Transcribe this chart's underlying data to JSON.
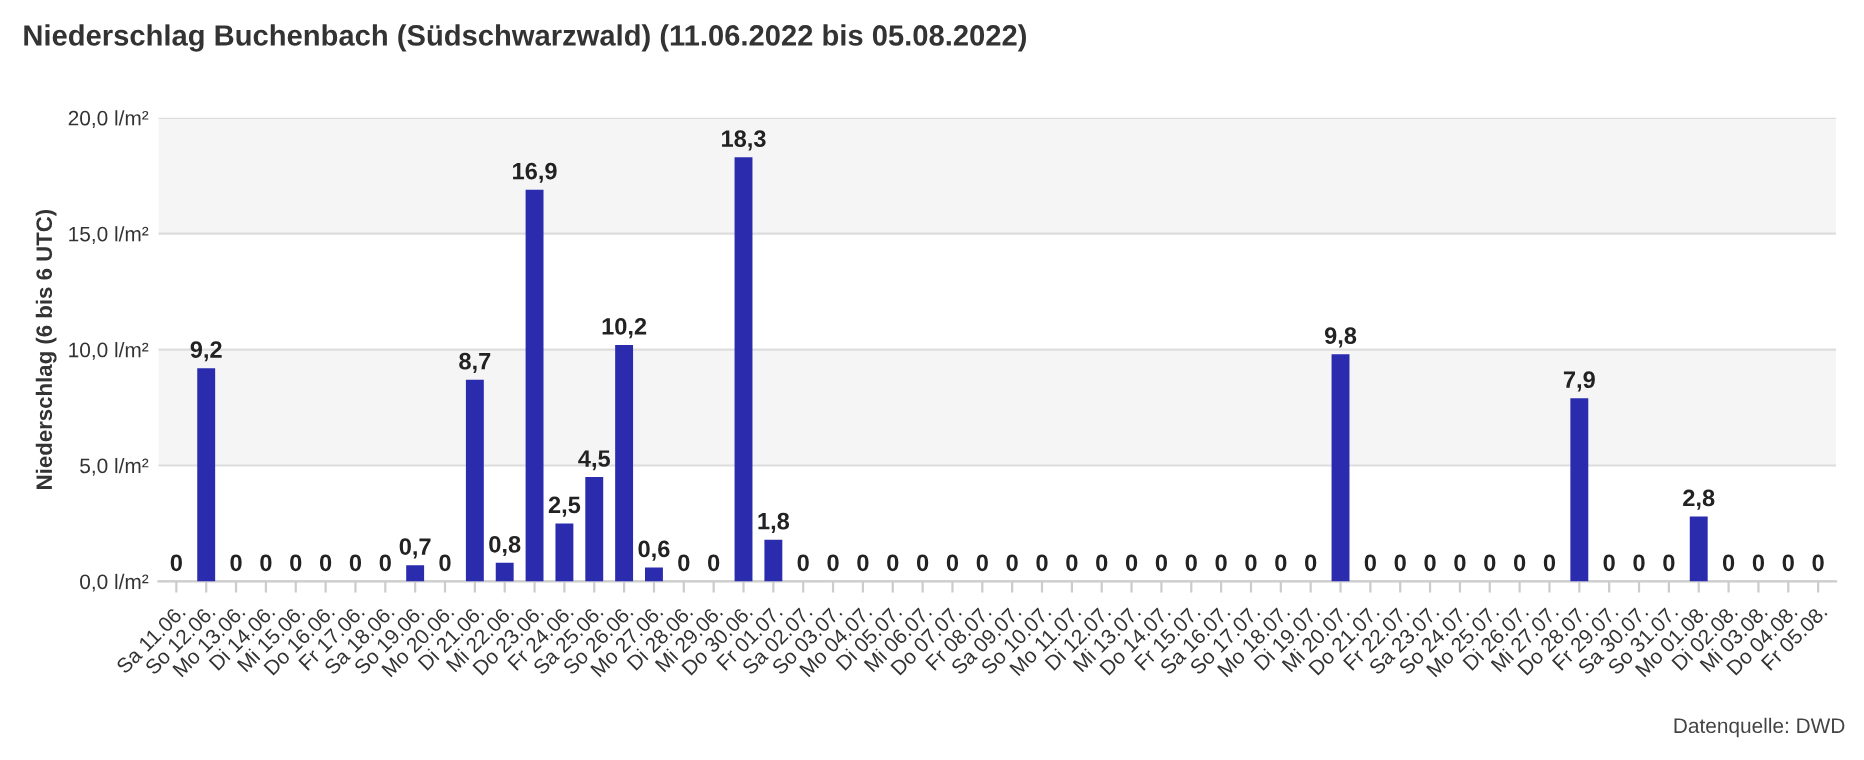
{
  "chart_data": {
    "type": "bar",
    "title": "Niederschlag Buchenbach (Südschwarzwald) (11.06.2022 bis 05.08.2022)",
    "ylabel": "Niederschlag (6 bis 6 UTC)",
    "annotations": [
      "Datenquelle: DWD"
    ],
    "categories": [
      "Sa 11.06.",
      "So 12.06.",
      "Mo 13.06.",
      "Di 14.06.",
      "Mi 15.06.",
      "Do 16.06.",
      "Fr 17.06.",
      "Sa 18.06.",
      "So 19.06.",
      "Mo 20.06.",
      "Di 21.06.",
      "Mi 22.06.",
      "Do 23.06.",
      "Fr 24.06.",
      "Sa 25.06.",
      "So 26.06.",
      "Mo 27.06.",
      "Di 28.06.",
      "Mi 29.06.",
      "Do 30.06.",
      "Fr 01.07.",
      "Sa 02.07.",
      "So 03.07.",
      "Mo 04.07.",
      "Di 05.07.",
      "Mi 06.07.",
      "Do 07.07.",
      "Fr 08.07.",
      "Sa 09.07.",
      "So 10.07.",
      "Mo 11.07.",
      "Di 12.07.",
      "Mi 13.07.",
      "Do 14.07.",
      "Fr 15.07.",
      "Sa 16.07.",
      "So 17.07.",
      "Mo 18.07.",
      "Di 19.07.",
      "Mi 20.07.",
      "Do 21.07.",
      "Fr 22.07.",
      "Sa 23.07.",
      "So 24.07.",
      "Mo 25.07.",
      "Di 26.07.",
      "Mi 27.07.",
      "Do 28.07.",
      "Fr 29.07.",
      "Sa 30.07.",
      "So 31.07.",
      "Mo 01.08.",
      "Di 02.08.",
      "Mi 03.08.",
      "Do 04.08.",
      "Fr 05.08."
    ],
    "values": [
      0,
      9.2,
      0,
      0,
      0,
      0,
      0,
      0,
      0.7,
      0,
      8.7,
      0.8,
      16.9,
      2.5,
      4.5,
      10.2,
      0.6,
      0,
      0,
      18.3,
      1.8,
      0,
      0,
      0,
      0,
      0,
      0,
      0,
      0,
      0,
      0,
      0,
      0,
      0,
      0,
      0,
      0,
      0,
      0,
      9.8,
      0,
      0,
      0,
      0,
      0,
      0,
      0,
      7.9,
      0,
      0,
      0,
      2.8,
      0,
      0,
      0,
      0
    ],
    "value_labels": [
      "0",
      "9,2",
      "0",
      "0",
      "0",
      "0",
      "0",
      "0",
      "0,7",
      "0",
      "8,7",
      "0,8",
      "16,9",
      "2,5",
      "4,5",
      "10,2",
      "0,6",
      "0",
      "0",
      "18,3",
      "1,8",
      "0",
      "0",
      "0",
      "0",
      "0",
      "0",
      "0",
      "0",
      "0",
      "0",
      "0",
      "0",
      "0",
      "0",
      "0",
      "0",
      "0",
      "0",
      "9,8",
      "0",
      "0",
      "0",
      "0",
      "0",
      "0",
      "0",
      "7,9",
      "0",
      "0",
      "0",
      "2,8",
      "0",
      "0",
      "0",
      "0"
    ],
    "color": "#2b2bae",
    "ylim": [
      0,
      20
    ],
    "yticks": [
      {
        "value": 0,
        "label": "0,0 l/m²"
      },
      {
        "value": 5,
        "label": "5,0 l/m²"
      },
      {
        "value": 10,
        "label": "10,0 l/m²"
      },
      {
        "value": 15,
        "label": "15,0 l/m²"
      },
      {
        "value": 20,
        "label": "20,0 l/m²"
      }
    ],
    "bands": [
      {
        "axis": "y",
        "from": 5,
        "to": 10,
        "color": "#f5f5f5"
      },
      {
        "axis": "y",
        "from": 15,
        "to": 20,
        "color": "#f5f5f5"
      }
    ],
    "grid": "y",
    "legend": false
  }
}
